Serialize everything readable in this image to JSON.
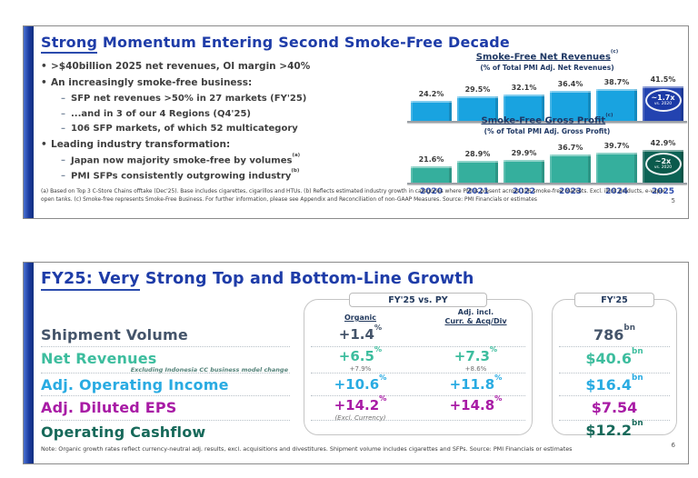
{
  "slide1": {
    "title_underlined": "Strong",
    "title_rest": " Momentum Entering Second Smoke-Free Decade",
    "bullets": [
      {
        "marker": "•",
        "text": ">$40billion 2025 net revenues, OI margin >40%"
      },
      {
        "marker": "•",
        "text": "An increasingly smoke-free business:"
      },
      {
        "marker": "–",
        "text": "SFP net revenues >50% in 27 markets (FY'25)"
      },
      {
        "marker": "–",
        "text": "...and in 3 of our 4 Regions (Q4'25)"
      },
      {
        "marker": "–",
        "text": "106 SFP markets, of which 52 multicategory"
      },
      {
        "marker": "•",
        "text": "Leading industry transformation:"
      },
      {
        "marker": "–",
        "text": "Japan now majority smoke-free by volumes",
        "sup": "(a)"
      },
      {
        "marker": "–",
        "text": "PMI SFPs consistently outgrowing industry",
        "sup": "(b)"
      }
    ],
    "footnote": "(a) Based on Top 3 C-Store Chains offtake (Dec'25). Base includes cigarettes, cigarillos and HTUs. (b) Reflects estimated industry growth in categories where PMI is present across 106 smoke-free markets. Excl. illicit products, e-vapor open tanks. (c) Smoke-free represents Smoke-Free Business. For further information, please see Appendix and Reconciliation of non-GAAP Measures. Source: PMI Financials or estimates",
    "page_number": "5"
  },
  "chart_data": [
    {
      "type": "bar",
      "title": "Smoke-Free Net Revenues",
      "title_sup": "(c)",
      "subtitle": "(% of Total PMI Adj. Net Revenues)",
      "categories": [
        "2020",
        "2021",
        "2022",
        "2023",
        "2024",
        "2025"
      ],
      "values": [
        24.2,
        29.5,
        32.1,
        36.4,
        38.7,
        41.5
      ],
      "unit": "%",
      "ylim": [
        0,
        41.5
      ],
      "grid": false,
      "bar_color": "#19a3e0",
      "bar_color_last": "#2343b0",
      "badge": {
        "line1": "~1.7x",
        "line2": "vs. 2020"
      },
      "badge_bg": "#1c3aa6",
      "x_axis_labels_visible": false
    },
    {
      "type": "bar",
      "title": "Smoke-Free Gross Profit",
      "title_sup": "(c)",
      "subtitle": "(% of Total PMI Adj. Gross Profit)",
      "categories": [
        "2020",
        "2021",
        "2022",
        "2023",
        "2024",
        "2025"
      ],
      "values": [
        21.6,
        28.9,
        29.9,
        36.7,
        39.7,
        42.9
      ],
      "unit": "%",
      "ylim": [
        0,
        42.9
      ],
      "grid": false,
      "bar_color": "#35af9d",
      "bar_color_last": "#0d6355",
      "badge": {
        "line1": "~2x",
        "line2": "vs. 2020"
      },
      "badge_bg": "#0b5a4c",
      "x_axis_labels_visible": true
    }
  ],
  "slide2": {
    "title_underlined": "FY25: Very",
    "title_rest": " Strong Top and Bottom-Line Growth",
    "vs_py_tab": "FY'25 vs. PY",
    "fy25_tab": "FY'25",
    "col_organic": "Organic",
    "col_adj_line1": "Adj. incl.",
    "col_adj_line2": "Curr. & Acq/Div",
    "rows": [
      {
        "label": "Shipment Volume",
        "color": "#44546a",
        "organic": "+1.4",
        "organic_sup": "%",
        "fy": "786",
        "fy_sup": "bn"
      },
      {
        "label": "Net Revenues",
        "sublabel": "Excluding Indonesia CC business model change",
        "color": "#3dbd9e",
        "organic": "+6.5",
        "organic_sup": "%",
        "organic_note": "+7.9%",
        "adj": "+7.3",
        "adj_sup": "%",
        "adj_note": "+8.6%",
        "fy": "$40.6",
        "fy_sup": "bn"
      },
      {
        "label": "Adj. Operating Income",
        "color": "#29abe2",
        "organic": "+10.6",
        "organic_sup": "%",
        "adj": "+11.8",
        "adj_sup": "%",
        "fy": "$16.4",
        "fy_sup": "bn"
      },
      {
        "label": "Adj. Diluted EPS",
        "color": "#a81ba5",
        "organic": "+14.2",
        "organic_sup": "%",
        "organic_note": "(Excl. Currency)",
        "adj": "+14.8",
        "adj_sup": "%",
        "fy": "$7.54",
        "fy_sup": ""
      },
      {
        "label": "Operating Cashflow",
        "color": "#17695a",
        "fy": "$12.2",
        "fy_sup": "bn"
      }
    ],
    "note": "Note: Organic growth rates reflect currency-neutral adj. results, excl. acquisitions and divestitures. Shipment volume includes cigarettes and SFPs. Source: PMI Financials or estimates",
    "page_number": "6"
  }
}
